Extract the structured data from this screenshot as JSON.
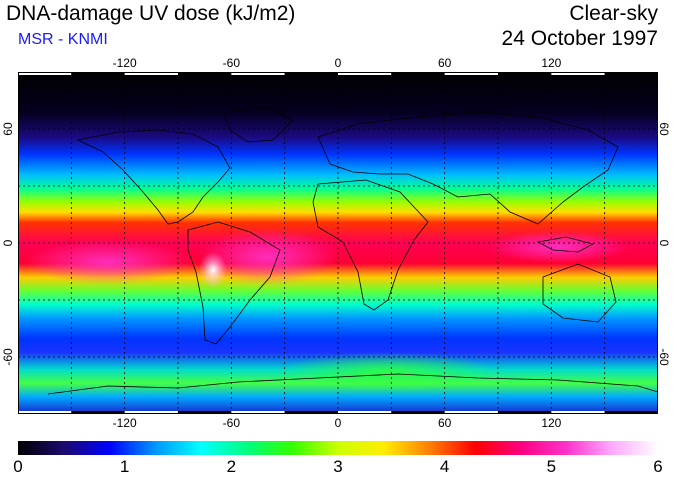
{
  "header": {
    "title": "DNA-damage UV dose (kJ/m2)",
    "subtitle": "MSR - KNMI",
    "sky_condition": "Clear-sky",
    "date": "24 October 1997"
  },
  "map": {
    "projection": "equirectangular",
    "lon_range": [
      -180,
      180
    ],
    "lat_range": [
      -90,
      90
    ],
    "lon_ticks": [
      "-120",
      "-60",
      "0",
      "60",
      "120"
    ],
    "lat_ticks": [
      "60",
      "0",
      "-60"
    ],
    "gridlines": "dashed every 30 degrees",
    "coastlines": true
  },
  "colorbar": {
    "labels": [
      "0",
      "1",
      "2",
      "3",
      "4",
      "5",
      "6"
    ],
    "range": [
      0,
      6
    ],
    "colors": [
      "#000000",
      "#1c0a6e",
      "#0000ff",
      "#0096ff",
      "#00ffff",
      "#00ff80",
      "#33ff00",
      "#ccff00",
      "#ffee00",
      "#ff8000",
      "#ff0000",
      "#ff0080",
      "#ff33cc",
      "#ffaaff",
      "#ffffff"
    ]
  }
}
